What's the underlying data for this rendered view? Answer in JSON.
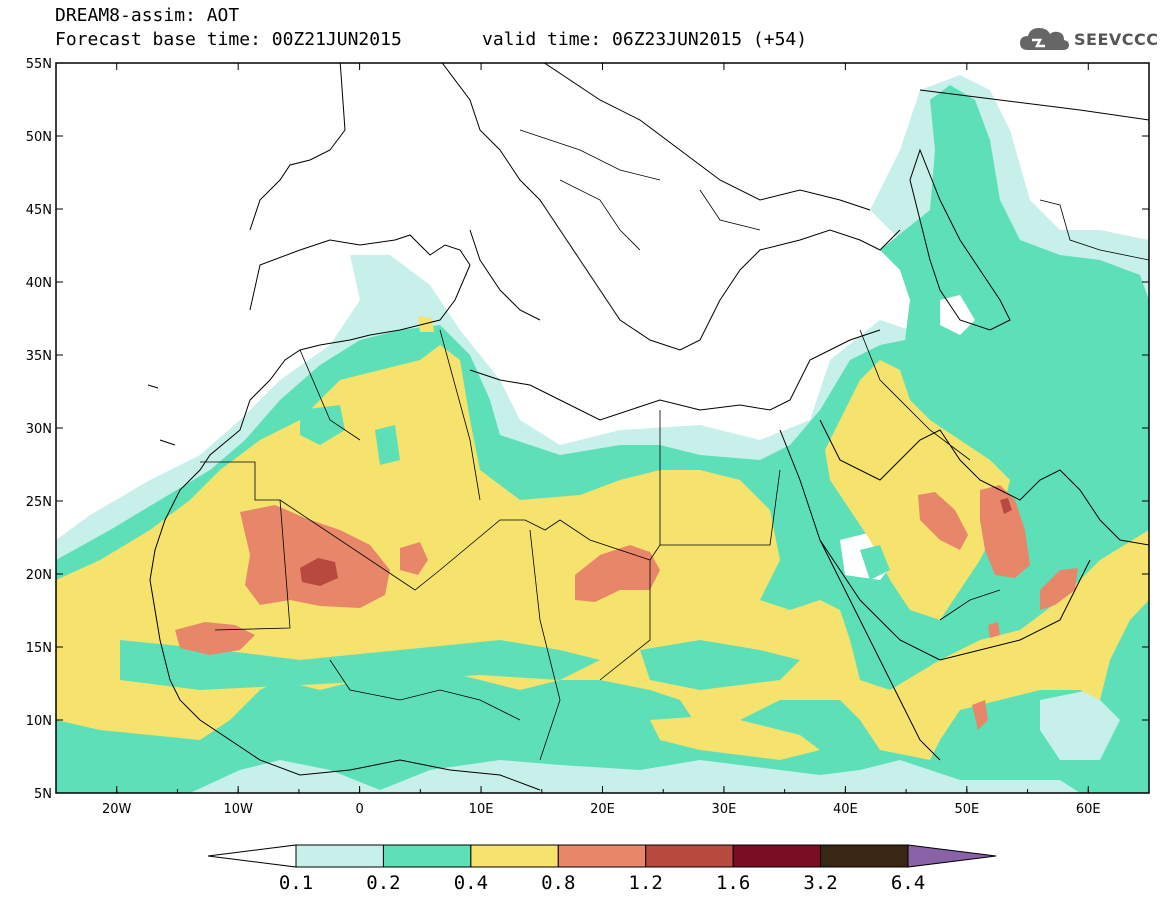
{
  "header": {
    "product": "DREAM8-assim: AOT",
    "base_time": "Forecast base time: 00Z21JUN2015",
    "valid_time": "valid time: 06Z23JUN2015 (+54)",
    "logo_text": "SEEVCCC"
  },
  "map": {
    "projection": "lat-lon",
    "lon_range": [
      -25,
      65
    ],
    "lat_range": [
      5,
      55
    ],
    "lat_ticks": [
      "55N",
      "50N",
      "45N",
      "40N",
      "35N",
      "30N",
      "25N",
      "20N",
      "15N",
      "10N",
      "5N"
    ],
    "lon_ticks": [
      "20W",
      "10W",
      "0",
      "10E",
      "20E",
      "30E",
      "40E",
      "50E",
      "60E"
    ],
    "field": "aerosol optical thickness"
  },
  "colorbar": {
    "levels": [
      "0.1",
      "0.2",
      "0.4",
      "0.8",
      "1.2",
      "1.6",
      "3.2",
      "6.4"
    ],
    "colors": [
      "#c8f0ea",
      "#5de0b8",
      "#f5e36e",
      "#e8866a",
      "#b8493f",
      "#7a0d24",
      "#3a2614",
      "#8a62a8"
    ],
    "under_color": "#ffffff"
  },
  "palette": {
    "ocean": "#ffffff",
    "coast": "#000000"
  }
}
